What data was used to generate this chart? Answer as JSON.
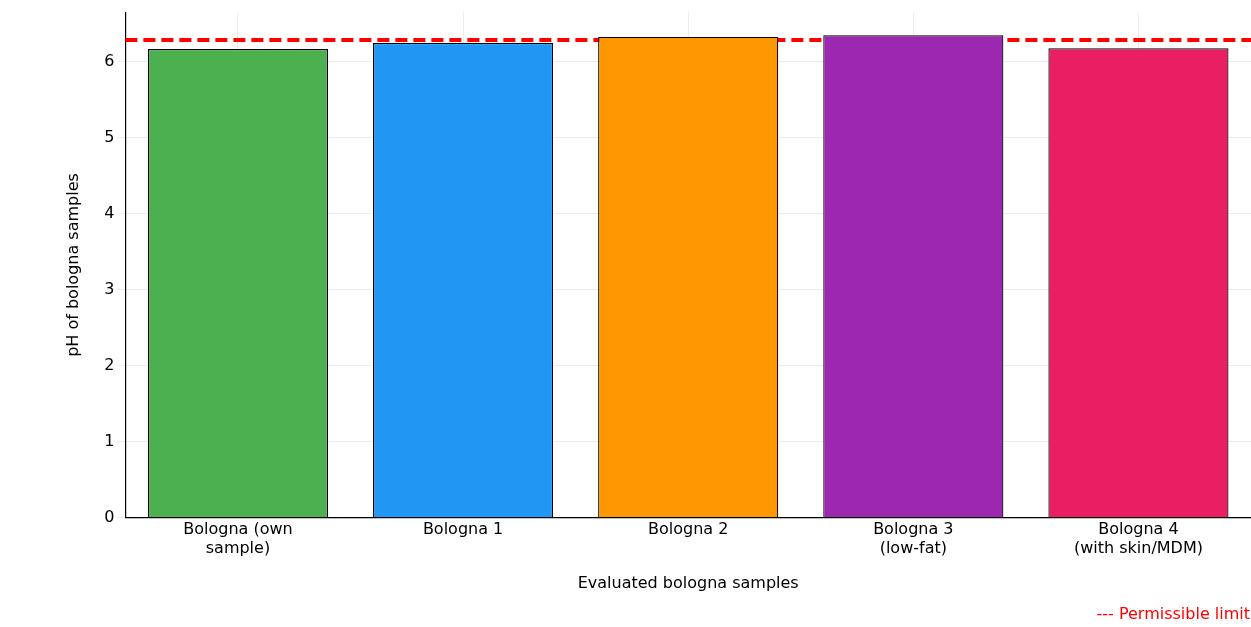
{
  "chart_data": {
    "type": "bar",
    "xlabel": "Evaluated bologna samples",
    "ylabel": "pH of bologna samples",
    "categories": [
      "Bologna (own\nsample)",
      "Bologna 1",
      "Bologna 2",
      "Bologna 3\n(low-fat)",
      "Bologna 4\n(with skin/MDM)"
    ],
    "values": [
      6.17,
      6.25,
      6.33,
      6.35,
      6.18
    ],
    "colors": [
      "#4caf50",
      "#2196f3",
      "#ff9800",
      "#9c27b0",
      "#e91e63"
    ],
    "ylim": [
      0,
      6.65
    ],
    "yticks": [
      0,
      1,
      2,
      3,
      4,
      5,
      6
    ],
    "grid": true,
    "ref_lines": [
      {
        "axis": "y",
        "value": 6.29,
        "color": "#ff0000",
        "line_style": "dashed"
      }
    ],
    "annotations": [
      "--- Permissible limit"
    ]
  }
}
